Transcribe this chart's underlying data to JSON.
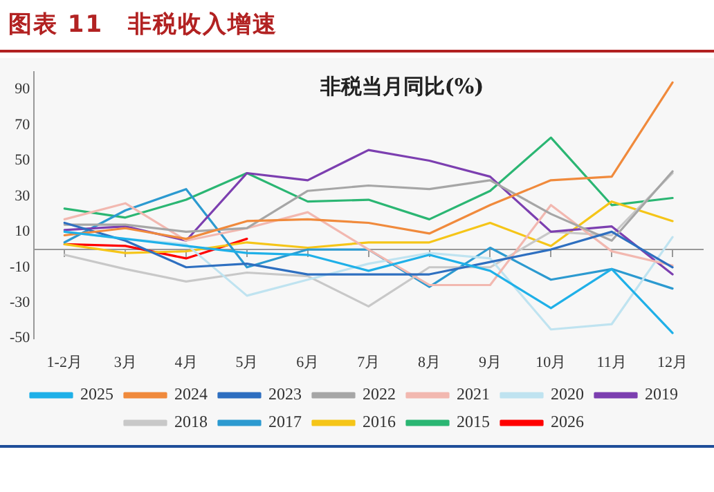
{
  "chart_data": {
    "type": "line",
    "title": "图表 11　非税收入增速",
    "subtitle": "非税当月同比(%)",
    "categories": [
      "1-2月",
      "3月",
      "4月",
      "5月",
      "6月",
      "7月",
      "8月",
      "9月",
      "10月",
      "11月",
      "12月"
    ],
    "ylim": [
      -50,
      100
    ],
    "yticks": [
      -50,
      -30,
      -10,
      10,
      30,
      50,
      70,
      90
    ],
    "grid": false,
    "legend": "bottom",
    "marker": "none",
    "line_style": "solid",
    "series": [
      {
        "name": "2025",
        "color": "#1fb0e8",
        "values": [
          10,
          6,
          2,
          -2,
          -3,
          -12,
          -3,
          -12,
          -33,
          -11,
          -47
        ]
      },
      {
        "name": "2024",
        "color": "#f08a3c",
        "values": [
          8,
          12,
          6,
          16,
          17,
          15,
          9,
          25,
          39,
          41,
          94
        ]
      },
      {
        "name": "2023",
        "color": "#2e6fc0",
        "values": [
          15,
          5,
          -10,
          -8,
          -14,
          -14,
          -14,
          -7,
          0,
          10,
          -10
        ]
      },
      {
        "name": "2022",
        "color": "#a6a6a6",
        "values": [
          14,
          14,
          10,
          12,
          33,
          36,
          34,
          39,
          20,
          5,
          44
        ]
      },
      {
        "name": "2021",
        "color": "#f2b8b0",
        "values": [
          17,
          26,
          5,
          12,
          21,
          0,
          -20,
          -20,
          25,
          -1,
          -9
        ]
      },
      {
        "name": "2020",
        "color": "#bfe3f0",
        "values": [
          10,
          6,
          3,
          -26,
          -17,
          -8,
          -2,
          -5,
          -45,
          -42,
          7
        ]
      },
      {
        "name": "2019",
        "color": "#7c3fb0",
        "values": [
          11,
          13,
          5,
          43,
          39,
          56,
          50,
          41,
          10,
          13,
          -14
        ]
      },
      {
        "name": "2018",
        "color": "#c8c8c8",
        "values": [
          -3,
          -11,
          -18,
          -13,
          -15,
          -32,
          -10,
          -10,
          10,
          8,
          43
        ]
      },
      {
        "name": "2017",
        "color": "#2c9ad0",
        "values": [
          4,
          22,
          34,
          -10,
          0,
          0,
          -21,
          1,
          -17,
          -11,
          -22
        ]
      },
      {
        "name": "2016",
        "color": "#f5c518",
        "values": [
          3,
          -2,
          -1,
          4,
          1,
          4,
          4,
          15,
          2,
          27,
          16
        ]
      },
      {
        "name": "2015",
        "color": "#2bb673",
        "values": [
          23,
          18,
          28,
          43,
          27,
          28,
          17,
          33,
          63,
          25,
          29
        ]
      },
      {
        "name": "2026",
        "color": "#ff0000",
        "values": [
          3,
          2,
          -5,
          6,
          null,
          null,
          null,
          null,
          null,
          null,
          null
        ]
      }
    ]
  }
}
